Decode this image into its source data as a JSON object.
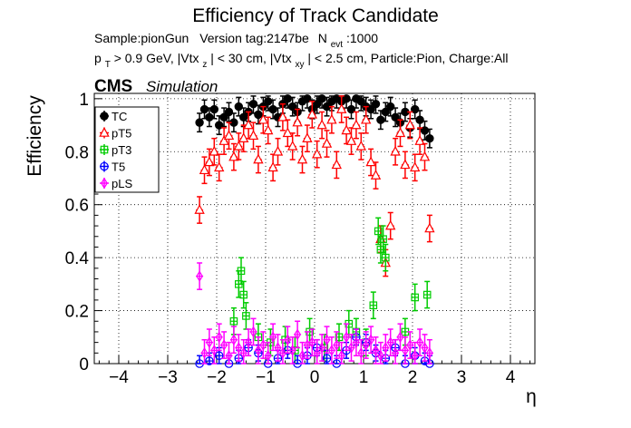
{
  "chart_data": {
    "type": "scatter",
    "title": "Efficiency of Track Candidate",
    "subtitle_line1": {
      "sample": "Sample:pionGun",
      "version": "Version tag:2147be",
      "nevt_label": "N",
      "nevt_sub": "evt",
      "nevt_value": ":1000"
    },
    "subtitle_line2": {
      "pt_p": "p",
      "pt_sub": "T",
      "pt_rest": " > 0.9 GeV, |Vtx",
      "vtx_z_sub": "z",
      "mid": "| < 30 cm, |Vtx",
      "vtx_xy_sub": "xy",
      "tail": "| < 2.5 cm, Particle:Pion, Charge:All"
    },
    "cms_label": "CMS",
    "simulation_label": "Simulation",
    "xlabel": "η",
    "ylabel": "Efficiency",
    "xlim": [
      -4.5,
      4.5
    ],
    "ylim": [
      0,
      1.02
    ],
    "x_ticks": [
      "−4",
      "−3",
      "−2",
      "−1",
      "0",
      "1",
      "2",
      "3",
      "4"
    ],
    "x_tick_values": [
      -4,
      -3,
      -2,
      -1,
      0,
      1,
      2,
      3,
      4
    ],
    "y_ticks": [
      "0",
      "0.2",
      "0.4",
      "0.6",
      "0.8",
      "1"
    ],
    "y_tick_values": [
      0,
      0.2,
      0.4,
      0.6,
      0.8,
      1.0
    ],
    "grid": true,
    "legend_position": "top-left",
    "series": [
      {
        "name": "TC",
        "color": "#000000",
        "marker": "filled-circle",
        "x": [
          -2.35,
          -2.25,
          -2.15,
          -2.05,
          -1.95,
          -1.85,
          -1.75,
          -1.65,
          -1.55,
          -1.45,
          -1.35,
          -1.25,
          -1.15,
          -1.05,
          -0.95,
          -0.85,
          -0.75,
          -0.65,
          -0.55,
          -0.45,
          -0.35,
          -0.25,
          -0.15,
          -0.05,
          0.05,
          0.15,
          0.25,
          0.35,
          0.45,
          0.55,
          0.65,
          0.75,
          0.85,
          0.95,
          1.05,
          1.15,
          1.25,
          1.35,
          1.45,
          1.55,
          1.65,
          1.75,
          1.85,
          1.95,
          2.05,
          2.15,
          2.25,
          2.35
        ],
        "y": [
          0.91,
          0.96,
          0.93,
          0.96,
          0.9,
          0.93,
          0.95,
          0.91,
          0.97,
          0.93,
          0.95,
          0.98,
          0.94,
          0.97,
          0.99,
          0.96,
          0.93,
          0.98,
          1.0,
          0.97,
          0.95,
          0.99,
          1.0,
          0.96,
          0.98,
          1.0,
          0.97,
          0.99,
          1.0,
          0.99,
          1.0,
          0.96,
          1.0,
          0.99,
          0.97,
          0.96,
          0.98,
          0.92,
          0.95,
          0.97,
          0.93,
          0.91,
          0.95,
          0.89,
          0.96,
          0.92,
          0.88,
          0.85
        ]
      },
      {
        "name": "pT5",
        "color": "#ff0000",
        "marker": "open-triangle",
        "x": [
          -2.35,
          -2.25,
          -2.15,
          -2.05,
          -1.95,
          -1.85,
          -1.75,
          -1.65,
          -1.55,
          -1.45,
          -1.35,
          -1.25,
          -1.15,
          -1.05,
          -0.95,
          -0.85,
          -0.75,
          -0.65,
          -0.55,
          -0.45,
          -0.35,
          -0.25,
          -0.15,
          -0.05,
          0.05,
          0.15,
          0.25,
          0.35,
          0.45,
          0.55,
          0.65,
          0.75,
          0.85,
          0.95,
          1.05,
          1.15,
          1.25,
          1.35,
          1.45,
          1.55,
          1.65,
          1.75,
          1.85,
          1.95,
          2.05,
          2.15,
          2.25,
          2.35
        ],
        "y": [
          0.58,
          0.73,
          0.76,
          0.8,
          0.74,
          0.84,
          0.86,
          0.78,
          0.82,
          0.85,
          0.9,
          0.86,
          0.77,
          0.92,
          0.88,
          0.74,
          0.8,
          0.93,
          0.87,
          0.82,
          0.91,
          0.77,
          0.85,
          0.94,
          0.79,
          0.9,
          0.83,
          0.92,
          0.75,
          0.96,
          0.88,
          0.84,
          0.9,
          0.82,
          0.92,
          0.76,
          0.71,
          0.47,
          0.38,
          0.52,
          0.8,
          0.87,
          0.75,
          0.9,
          0.74,
          0.84,
          0.78,
          0.51
        ]
      },
      {
        "name": "pT3",
        "color": "#00cc00",
        "marker": "open-square",
        "x": [
          -1.65,
          -1.55,
          -1.5,
          -1.45,
          -1.4,
          -1.15,
          -0.9,
          -0.6,
          -0.4,
          -0.1,
          0.2,
          0.5,
          0.7,
          0.85,
          1.05,
          1.2,
          1.3,
          1.35,
          1.4,
          1.45,
          1.85,
          2.05,
          2.3
        ],
        "y": [
          0.16,
          0.3,
          0.35,
          0.26,
          0.18,
          0.1,
          0.08,
          0.09,
          0.05,
          0.12,
          0.06,
          0.1,
          0.15,
          0.12,
          0.08,
          0.22,
          0.5,
          0.43,
          0.47,
          0.4,
          0.12,
          0.25,
          0.26
        ]
      },
      {
        "name": "T5",
        "color": "#0000ff",
        "marker": "open-circle",
        "x": [
          -2.35,
          -2.15,
          -1.95,
          -1.75,
          -1.55,
          -1.35,
          -1.15,
          -0.95,
          -0.75,
          -0.55,
          -0.35,
          -0.15,
          0.05,
          0.25,
          0.45,
          0.65,
          0.85,
          1.05,
          1.25,
          1.45,
          1.65,
          1.85,
          2.05,
          2.25,
          2.35
        ],
        "y": [
          0.0,
          0.01,
          0.03,
          0.0,
          0.02,
          0.06,
          0.04,
          0.0,
          0.02,
          0.05,
          0.0,
          0.03,
          0.06,
          0.02,
          0.0,
          0.05,
          0.1,
          0.08,
          0.04,
          0.02,
          0.06,
          0.0,
          0.03,
          0.01,
          0.0
        ]
      },
      {
        "name": "pLS",
        "color": "#ff00ff",
        "marker": "open-diamond",
        "x": [
          -2.35,
          -2.25,
          -2.15,
          -2.05,
          -1.95,
          -1.85,
          -1.75,
          -1.65,
          -1.55,
          -1.45,
          -1.35,
          -1.25,
          -1.15,
          -1.05,
          -0.95,
          -0.85,
          -0.75,
          -0.65,
          -0.55,
          -0.45,
          -0.35,
          -0.25,
          -0.15,
          -0.05,
          0.05,
          0.15,
          0.25,
          0.35,
          0.45,
          0.55,
          0.65,
          0.75,
          0.85,
          0.95,
          1.05,
          1.15,
          1.25,
          1.35,
          1.45,
          1.55,
          1.65,
          1.75,
          1.85,
          1.95,
          2.05,
          2.15,
          2.25,
          2.35
        ],
        "y": [
          0.33,
          0.04,
          0.08,
          0.05,
          0.1,
          0.07,
          0.03,
          0.09,
          0.06,
          0.04,
          0.08,
          0.12,
          0.05,
          0.07,
          0.03,
          0.1,
          0.06,
          0.04,
          0.09,
          0.05,
          0.11,
          0.03,
          0.07,
          0.08,
          0.04,
          0.06,
          0.09,
          0.05,
          0.07,
          0.03,
          0.1,
          0.06,
          0.08,
          0.04,
          0.07,
          0.09,
          0.05,
          0.03,
          0.06,
          0.08,
          0.04,
          0.1,
          0.05,
          0.07,
          0.03,
          0.08,
          0.06,
          0.04
        ]
      }
    ]
  }
}
